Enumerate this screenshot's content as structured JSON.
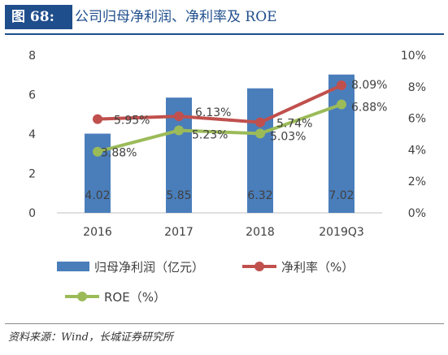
{
  "header": {
    "label": "图 68:",
    "title": "公司归母净利润、净利率及 ROE"
  },
  "chart_data": {
    "type": "bar+line",
    "categories": [
      "2016",
      "2017",
      "2018",
      "2019Q3"
    ],
    "bar_series": {
      "name": "归母净利润（亿元）",
      "values": [
        4.02,
        5.85,
        6.32,
        7.02
      ],
      "value_labels": [
        "4.02",
        "5.85",
        "6.32",
        "7.02"
      ],
      "color": "#4a7ebb"
    },
    "line_series": [
      {
        "name": "净利率（%）",
        "values": [
          5.95,
          6.13,
          5.74,
          8.09
        ],
        "value_labels": [
          "5.95%",
          "6.13%",
          "5.74%",
          "8.09%"
        ],
        "color": "#c0504d"
      },
      {
        "name": "ROE（%）",
        "values": [
          3.88,
          5.23,
          5.03,
          6.88
        ],
        "value_labels": [
          "3.88%",
          "5.23%",
          "5.03%",
          "6.88%"
        ],
        "color": "#9bbb59"
      }
    ],
    "y_left": {
      "min": 0,
      "max": 8,
      "ticks": [
        "0",
        "2",
        "4",
        "6",
        "8"
      ]
    },
    "y_right": {
      "min": 0,
      "max": 10,
      "ticks": [
        "0%",
        "2%",
        "4%",
        "6%",
        "8%",
        "10%"
      ]
    },
    "grid": false,
    "legend_position": "bottom"
  },
  "source": "资料来源：Wind，长城证券研究所"
}
